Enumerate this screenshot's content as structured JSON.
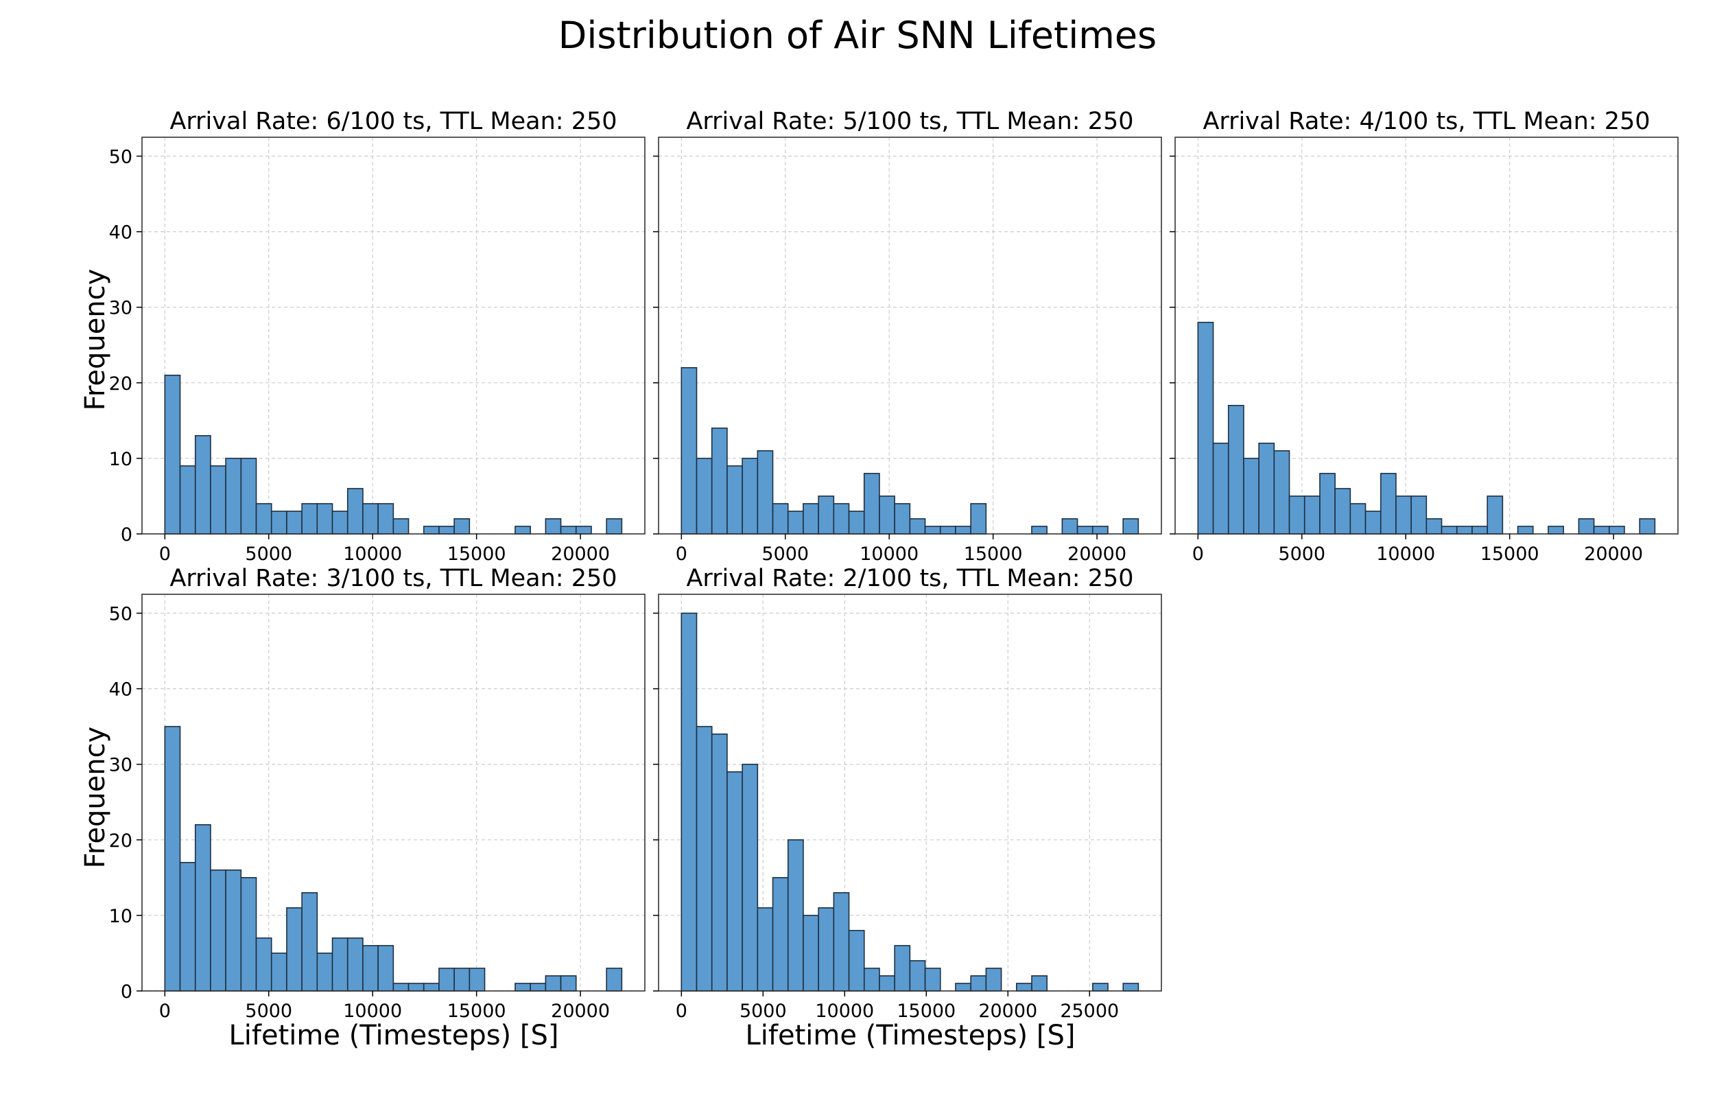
{
  "figure": {
    "title": "Distribution of Air SNN Lifetimes",
    "ylabel": "Frequency",
    "xlabel": "Lifetime (Timesteps) [S]",
    "bar_color": "#5b9bd0",
    "edge_color": "#1f2f40",
    "grid_color": "#cccccc"
  },
  "chart_data": [
    {
      "type": "bar",
      "title": "Arrival Rate: 6/100 ts, TTL Mean: 250",
      "xlim": [
        -1100,
        23100
      ],
      "ylim": [
        0,
        52.5
      ],
      "xticks": [
        0,
        5000,
        10000,
        15000,
        20000
      ],
      "yticks": [
        0,
        10,
        20,
        30,
        40,
        50
      ],
      "bin_start": 0,
      "bin_width": 733,
      "values": [
        21,
        9,
        13,
        9,
        10,
        10,
        4,
        3,
        3,
        4,
        4,
        3,
        6,
        4,
        4,
        2,
        0,
        1,
        1,
        2,
        0,
        0,
        0,
        1,
        0,
        2,
        1,
        1,
        0,
        2
      ]
    },
    {
      "type": "bar",
      "title": "Arrival Rate: 5/100 ts, TTL Mean: 250",
      "xlim": [
        -1100,
        23100
      ],
      "ylim": [
        0,
        52.5
      ],
      "xticks": [
        0,
        5000,
        10000,
        15000,
        20000
      ],
      "yticks": [
        0,
        10,
        20,
        30,
        40,
        50
      ],
      "bin_start": 0,
      "bin_width": 733,
      "values": [
        22,
        10,
        14,
        9,
        10,
        11,
        4,
        3,
        4,
        5,
        4,
        3,
        8,
        5,
        4,
        2,
        1,
        1,
        1,
        4,
        0,
        0,
        0,
        1,
        0,
        2,
        1,
        1,
        0,
        2
      ]
    },
    {
      "type": "bar",
      "title": "Arrival Rate: 4/100 ts, TTL Mean: 250",
      "xlim": [
        -1100,
        23100
      ],
      "ylim": [
        0,
        52.5
      ],
      "xticks": [
        0,
        5000,
        10000,
        15000,
        20000
      ],
      "yticks": [
        0,
        10,
        20,
        30,
        40,
        50
      ],
      "bin_start": 0,
      "bin_width": 733,
      "values": [
        28,
        12,
        17,
        10,
        12,
        11,
        5,
        5,
        8,
        6,
        4,
        3,
        8,
        5,
        5,
        2,
        1,
        1,
        1,
        5,
        0,
        1,
        0,
        1,
        0,
        2,
        1,
        1,
        0,
        2
      ]
    },
    {
      "type": "bar",
      "title": "Arrival Rate: 3/100 ts, TTL Mean: 250",
      "xlim": [
        -1100,
        23100
      ],
      "ylim": [
        0,
        52.5
      ],
      "xticks": [
        0,
        5000,
        10000,
        15000,
        20000
      ],
      "yticks": [
        0,
        10,
        20,
        30,
        40,
        50
      ],
      "bin_start": 0,
      "bin_width": 733,
      "values": [
        35,
        17,
        22,
        16,
        16,
        15,
        7,
        5,
        11,
        13,
        5,
        7,
        7,
        6,
        6,
        1,
        1,
        1,
        3,
        3,
        3,
        0,
        0,
        1,
        1,
        2,
        2,
        0,
        0,
        3
      ]
    },
    {
      "type": "bar",
      "title": "Arrival Rate: 2/100 ts, TTL Mean: 250",
      "xlim": [
        -1400,
        29400
      ],
      "ylim": [
        0,
        52.5
      ],
      "xticks": [
        0,
        5000,
        10000,
        15000,
        20000,
        25000
      ],
      "yticks": [
        0,
        10,
        20,
        30,
        40,
        50
      ],
      "bin_start": 0,
      "bin_width": 933,
      "values": [
        50,
        35,
        34,
        29,
        30,
        11,
        15,
        20,
        10,
        11,
        13,
        8,
        3,
        2,
        6,
        4,
        3,
        0,
        1,
        2,
        3,
        0,
        1,
        2,
        0,
        0,
        0,
        1,
        0,
        1
      ]
    }
  ]
}
